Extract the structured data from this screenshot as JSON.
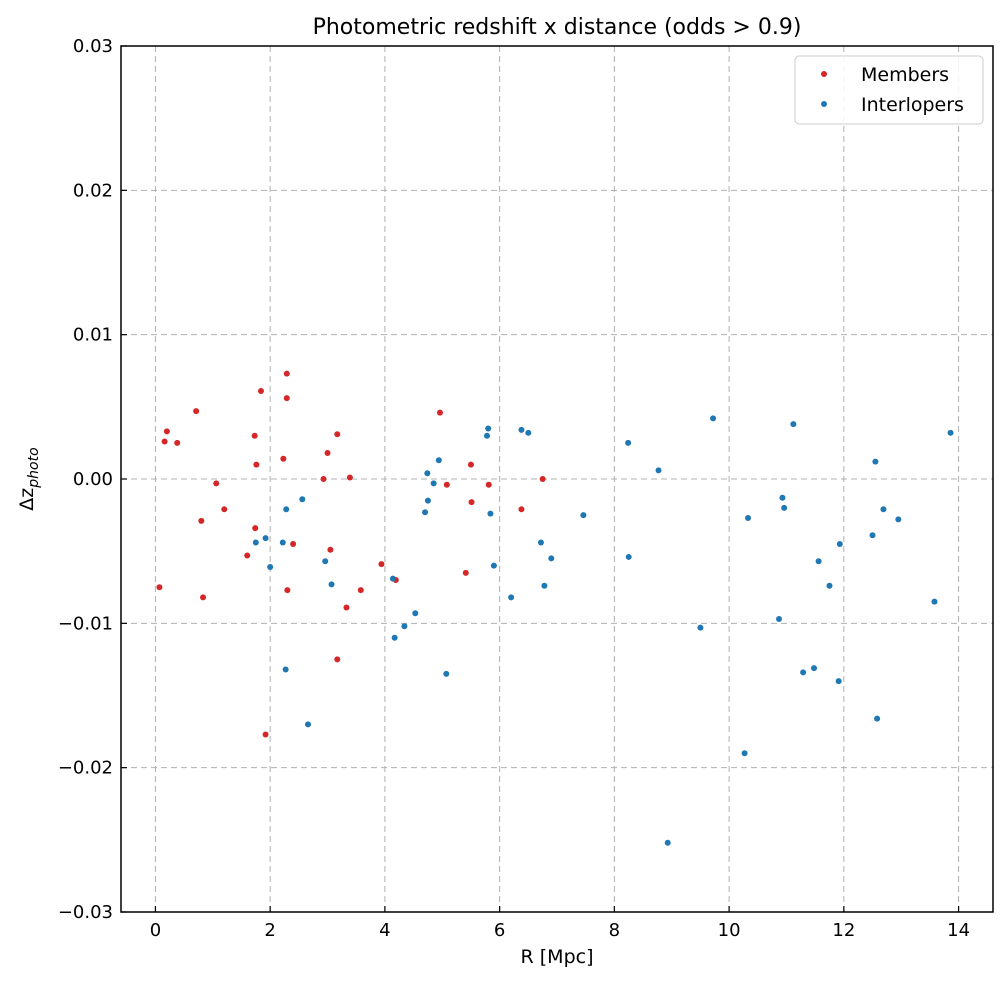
{
  "chart_data": {
    "type": "scatter",
    "title": "Photometric redshift x distance (odds > 0.9)",
    "xlabel": "R [Mpc]",
    "ylabel_base": "Δz",
    "ylabel_sub": "photo",
    "xlim": [
      -0.6,
      14.6
    ],
    "ylim": [
      -0.03,
      0.03
    ],
    "xticks": [
      0,
      2,
      4,
      6,
      8,
      10,
      12,
      14
    ],
    "xtick_labels": [
      "0",
      "2",
      "4",
      "6",
      "8",
      "10",
      "12",
      "14"
    ],
    "yticks": [
      -0.03,
      -0.02,
      -0.01,
      0.0,
      0.01,
      0.02,
      0.03
    ],
    "ytick_labels": [
      "−0.03",
      "−0.02",
      "−0.01",
      "0.00",
      "0.01",
      "0.02",
      "0.03"
    ],
    "grid": true,
    "legend_position": "top-right",
    "series": [
      {
        "name": "Members",
        "color": "#d62728",
        "points": [
          [
            0.07,
            -0.0075
          ],
          [
            0.16,
            0.0026
          ],
          [
            0.2,
            0.0033
          ],
          [
            0.38,
            0.0025
          ],
          [
            0.71,
            0.0047
          ],
          [
            0.8,
            -0.0029
          ],
          [
            0.83,
            -0.0082
          ],
          [
            1.06,
            -0.0003
          ],
          [
            1.2,
            -0.0021
          ],
          [
            1.6,
            -0.0053
          ],
          [
            1.73,
            0.003
          ],
          [
            1.74,
            -0.0034
          ],
          [
            1.76,
            0.001
          ],
          [
            1.84,
            0.0061
          ],
          [
            1.92,
            -0.0177
          ],
          [
            2.23,
            0.0014
          ],
          [
            2.29,
            0.0073
          ],
          [
            2.29,
            0.0056
          ],
          [
            2.3,
            -0.0077
          ],
          [
            2.4,
            -0.0045
          ],
          [
            2.93,
            0.0
          ],
          [
            3.0,
            0.0018
          ],
          [
            3.05,
            -0.0049
          ],
          [
            3.17,
            0.0031
          ],
          [
            3.17,
            -0.0125
          ],
          [
            3.33,
            -0.0089
          ],
          [
            3.39,
            0.0001
          ],
          [
            3.58,
            -0.0077
          ],
          [
            3.94,
            -0.0059
          ],
          [
            4.19,
            -0.007
          ],
          [
            4.96,
            0.0046
          ],
          [
            5.08,
            -0.0004
          ],
          [
            5.41,
            -0.0065
          ],
          [
            5.5,
            0.001
          ],
          [
            5.51,
            -0.0016
          ],
          [
            5.81,
            -0.0004
          ],
          [
            6.38,
            -0.0021
          ],
          [
            6.75,
            0.0
          ]
        ]
      },
      {
        "name": "Interlopers",
        "color": "#1f77b4",
        "points": [
          [
            1.75,
            -0.0044
          ],
          [
            1.92,
            -0.0041
          ],
          [
            2.0,
            -0.0061
          ],
          [
            2.22,
            -0.0044
          ],
          [
            2.27,
            -0.0132
          ],
          [
            2.28,
            -0.0021
          ],
          [
            2.56,
            -0.0014
          ],
          [
            2.66,
            -0.017
          ],
          [
            2.96,
            -0.0057
          ],
          [
            3.07,
            -0.0073
          ],
          [
            4.14,
            -0.0069
          ],
          [
            4.17,
            -0.011
          ],
          [
            4.34,
            -0.0102
          ],
          [
            4.53,
            -0.0093
          ],
          [
            4.7,
            -0.0023
          ],
          [
            4.74,
            0.0004
          ],
          [
            4.75,
            -0.0015
          ],
          [
            4.85,
            -0.0003
          ],
          [
            4.94,
            0.0013
          ],
          [
            5.07,
            -0.0135
          ],
          [
            5.78,
            0.003
          ],
          [
            5.8,
            0.0035
          ],
          [
            5.84,
            -0.0024
          ],
          [
            5.9,
            -0.006
          ],
          [
            6.2,
            -0.0082
          ],
          [
            6.38,
            0.0034
          ],
          [
            6.5,
            0.0032
          ],
          [
            6.72,
            -0.0044
          ],
          [
            6.78,
            -0.0074
          ],
          [
            6.9,
            -0.0055
          ],
          [
            7.46,
            -0.0025
          ],
          [
            8.24,
            0.0025
          ],
          [
            8.25,
            -0.0054
          ],
          [
            8.77,
            0.0006
          ],
          [
            8.93,
            -0.0252
          ],
          [
            9.5,
            -0.0103
          ],
          [
            9.72,
            0.0042
          ],
          [
            10.27,
            -0.019
          ],
          [
            10.33,
            -0.0027
          ],
          [
            10.87,
            -0.0097
          ],
          [
            10.93,
            -0.0013
          ],
          [
            10.96,
            -0.002
          ],
          [
            11.12,
            0.0038
          ],
          [
            11.29,
            -0.0134
          ],
          [
            11.48,
            -0.0131
          ],
          [
            11.56,
            -0.0057
          ],
          [
            11.75,
            -0.0074
          ],
          [
            11.91,
            -0.014
          ],
          [
            11.93,
            -0.0045
          ],
          [
            12.5,
            -0.0039
          ],
          [
            12.55,
            0.0012
          ],
          [
            12.58,
            -0.0166
          ],
          [
            12.69,
            -0.0021
          ],
          [
            12.95,
            -0.0028
          ],
          [
            13.58,
            -0.0085
          ],
          [
            13.86,
            0.0032
          ]
        ]
      }
    ]
  }
}
